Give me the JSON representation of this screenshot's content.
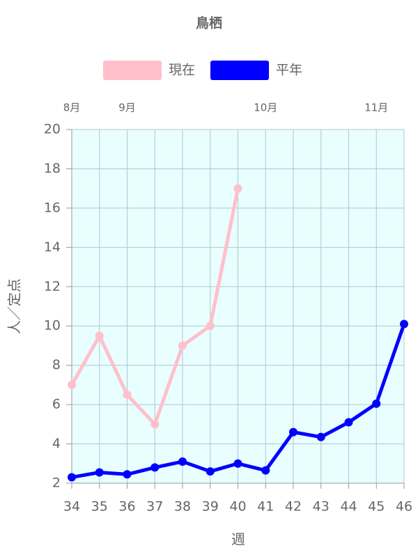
{
  "chart_data": {
    "type": "line",
    "title": "鳥栖",
    "x": [
      34,
      35,
      36,
      37,
      38,
      39,
      40,
      41,
      42,
      43,
      44,
      45,
      46
    ],
    "series": [
      {
        "name": "現在",
        "color": "#ffc0cb",
        "values": [
          7,
          9.5,
          6.5,
          5,
          9,
          10,
          17,
          null,
          null,
          null,
          null,
          null,
          null
        ]
      },
      {
        "name": "平年",
        "color": "#0000ff",
        "values": [
          2.3,
          2.55,
          2.45,
          2.8,
          3.1,
          2.6,
          3.0,
          2.65,
          4.6,
          4.35,
          5.1,
          6.05,
          10.1
        ]
      }
    ],
    "xlim": [
      34,
      46
    ],
    "xticks": [
      34,
      35,
      36,
      37,
      38,
      39,
      40,
      41,
      42,
      43,
      44,
      45,
      46
    ],
    "ylim": [
      2,
      20
    ],
    "yticks": [
      2,
      4,
      6,
      8,
      10,
      12,
      14,
      16,
      18,
      20
    ],
    "month_labels": [
      {
        "value": 34,
        "label": "8月"
      },
      {
        "value": 36,
        "label": "9月"
      },
      {
        "value": 41,
        "label": "10月"
      },
      {
        "value": 45,
        "label": "11月"
      }
    ],
    "x_label": "週",
    "y_label": "人／定点",
    "grid": true,
    "legend": "top"
  }
}
